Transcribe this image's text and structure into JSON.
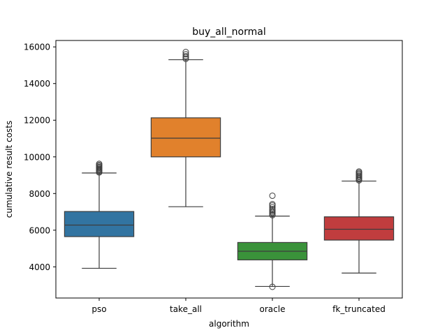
{
  "chart_data": {
    "type": "box",
    "title": "buy_all_normal",
    "xlabel": "algorithm",
    "ylabel": "cumulative result costs",
    "ylim": [
      2300,
      16350
    ],
    "yticks": [
      4000,
      6000,
      8000,
      10000,
      12000,
      14000,
      16000
    ],
    "grid": false,
    "categories": [
      "pso",
      "take_all",
      "oracle",
      "fk_truncated"
    ],
    "colors": [
      "#3274a1",
      "#e1812c",
      "#3a923a",
      "#c03d3e"
    ],
    "boxes": [
      {
        "category": "pso",
        "whisker_low": 3920,
        "q1": 5650,
        "median": 6280,
        "q3": 7020,
        "whisker_high": 9120,
        "outliers": [
          9150,
          9200,
          9250,
          9300,
          9350,
          9400,
          9450,
          9500,
          9560,
          9620
        ]
      },
      {
        "category": "take_all",
        "whisker_low": 7280,
        "q1": 10000,
        "median": 11020,
        "q3": 12130,
        "whisker_high": 15300,
        "outliers": [
          15350,
          15420,
          15500,
          15600,
          15720
        ]
      },
      {
        "category": "oracle",
        "whisker_low": 2930,
        "q1": 4380,
        "median": 4850,
        "q3": 5330,
        "whisker_high": 6770,
        "outliers": [
          2910,
          6820,
          6880,
          6950,
          7010,
          7080,
          7150,
          7250,
          7350,
          7420,
          7880
        ]
      },
      {
        "category": "fk_truncated",
        "whisker_low": 3660,
        "q1": 5460,
        "median": 6050,
        "q3": 6730,
        "whisker_high": 8680,
        "outliers": [
          8720,
          8780,
          8840,
          8900,
          8960,
          9020,
          9080,
          9140,
          9200
        ]
      }
    ]
  }
}
